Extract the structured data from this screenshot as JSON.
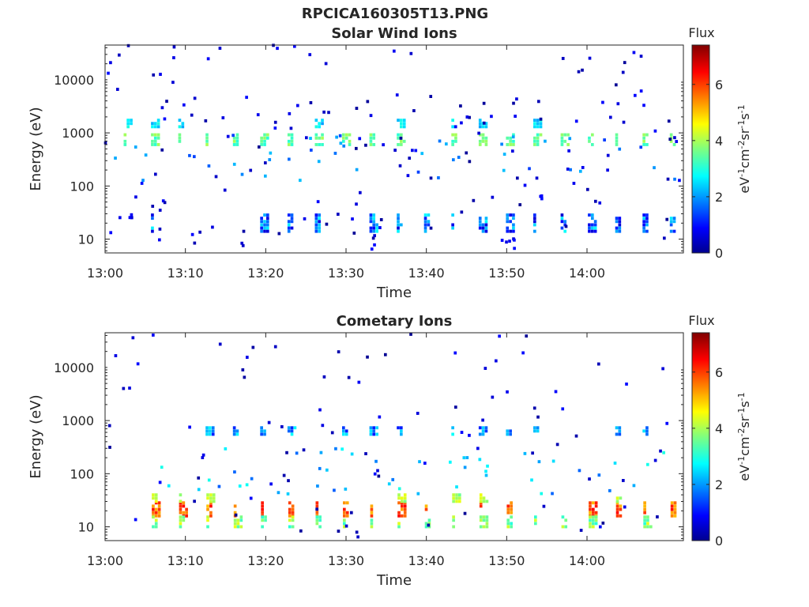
{
  "figure_title": "RPCICA160305T13.PNG",
  "chart_data": [
    {
      "type": "heatmap",
      "title": "Solar Wind Ions",
      "xlabel": "Time",
      "ylabel": "Energy (eV)",
      "x_ticks": [
        "13:00",
        "13:10",
        "13:20",
        "13:30",
        "13:40",
        "13:50",
        "14:00"
      ],
      "x_range_minutes": [
        0,
        72
      ],
      "y_scale": "log",
      "y_ticks": [
        "10",
        "100",
        "1000",
        "10000"
      ],
      "y_range": [
        5.5,
        45000
      ],
      "colorbar": {
        "title": "Flux",
        "label": "eV-1cm-2sr-1s-1",
        "ticks": [
          "0",
          "2",
          "4",
          "6"
        ],
        "range": [
          0,
          7.4
        ],
        "colormap": "jet"
      },
      "bands": [
        {
          "energy_range": [
            600,
            950
          ],
          "level_range": [
            3,
            4
          ],
          "minute_range": [
            2.5,
            72
          ],
          "spacing_min": 3.4,
          "prob": 0.9
        },
        {
          "energy_range": [
            1300,
            1800
          ],
          "level_range": [
            2,
            3
          ],
          "minute_range": [
            2.5,
            72
          ],
          "spacing_min": 3.4,
          "prob": 0.45
        },
        {
          "energy_range": [
            14,
            32
          ],
          "level_range": [
            0.5,
            2.8
          ],
          "minute_range": [
            2.5,
            72
          ],
          "spacing_min": 3.4,
          "prob": 0.8
        },
        {
          "energy_range": [
            6,
            45000
          ],
          "level_range": [
            0,
            1
          ],
          "minute_range": [
            0,
            72
          ],
          "spacing_min": 0,
          "prob": 170
        },
        {
          "energy_range": [
            120,
            900
          ],
          "level_range": [
            1.3,
            2.3
          ],
          "minute_range": [
            1,
            72
          ],
          "spacing_min": 0,
          "prob": 45
        }
      ],
      "grid": false
    },
    {
      "type": "heatmap",
      "title": "Cometary Ions",
      "xlabel": "Time",
      "ylabel": "Energy (eV)",
      "x_ticks": [
        "13:00",
        "13:10",
        "13:20",
        "13:30",
        "13:40",
        "13:50",
        "14:00"
      ],
      "x_range_minutes": [
        0,
        72
      ],
      "y_scale": "log",
      "y_ticks": [
        "10",
        "100",
        "1000",
        "10000"
      ],
      "y_range": [
        5.5,
        45000
      ],
      "colorbar": {
        "title": "Flux",
        "label": "eV-1cm-2sr-1s-1",
        "ticks": [
          "0",
          "2",
          "4",
          "6"
        ],
        "range": [
          0,
          7.4
        ],
        "colormap": "jet"
      },
      "bands": [
        {
          "energy_range": [
            16,
            30
          ],
          "level_range": [
            5,
            6.5
          ],
          "minute_range": [
            6,
            72
          ],
          "spacing_min": 3.4,
          "prob": 0.85
        },
        {
          "energy_range": [
            10,
            16
          ],
          "level_range": [
            3,
            4.5
          ],
          "minute_range": [
            6,
            72
          ],
          "spacing_min": 3.4,
          "prob": 0.75
        },
        {
          "energy_range": [
            30,
            42
          ],
          "level_range": [
            3.5,
            4.5
          ],
          "minute_range": [
            6,
            72
          ],
          "spacing_min": 3.4,
          "prob": 0.5
        },
        {
          "energy_range": [
            550,
            800
          ],
          "level_range": [
            1,
            2.8
          ],
          "minute_range": [
            2.5,
            72
          ],
          "spacing_min": 3.4,
          "prob": 0.6
        },
        {
          "energy_range": [
            6,
            45000
          ],
          "level_range": [
            0,
            1
          ],
          "minute_range": [
            0,
            72
          ],
          "spacing_min": 0,
          "prob": 90
        },
        {
          "energy_range": [
            40,
            300
          ],
          "level_range": [
            1.5,
            3
          ],
          "minute_range": [
            3,
            72
          ],
          "spacing_min": 0,
          "prob": 50
        }
      ],
      "grid": false
    }
  ]
}
